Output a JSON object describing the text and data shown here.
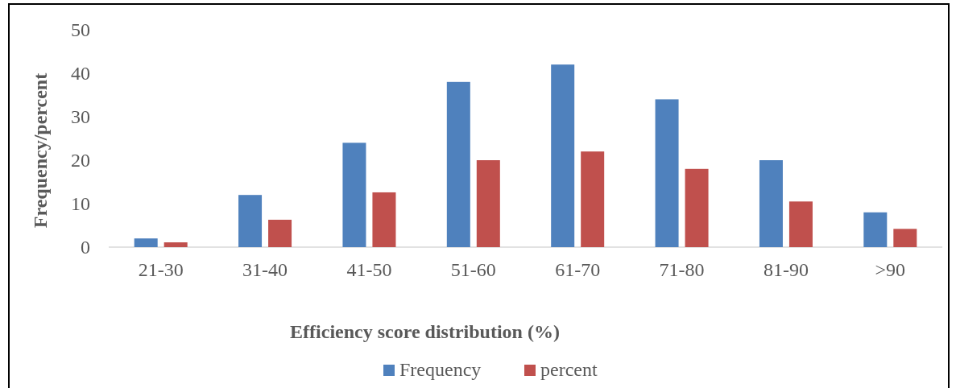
{
  "chart_data": {
    "type": "bar",
    "categories": [
      "21-30",
      "31-40",
      "41-50",
      "51-60",
      "61-70",
      "71-80",
      "81-90",
      ">90"
    ],
    "series": [
      {
        "name": "Frequency",
        "color": "#4f81bd",
        "values": [
          2,
          12,
          24,
          38,
          42,
          34,
          20,
          8
        ]
      },
      {
        "name": "percent",
        "color": "#c0504d",
        "values": [
          1.1,
          6.3,
          12.6,
          20,
          22,
          18,
          10.5,
          4.2
        ]
      }
    ],
    "ylabel": "Frequency/percent",
    "xlabel": "Efficiency score distribution (%)",
    "ylim": [
      0,
      50
    ],
    "yticks": [
      0,
      10,
      20,
      30,
      40,
      50
    ],
    "legend": "bottom"
  }
}
